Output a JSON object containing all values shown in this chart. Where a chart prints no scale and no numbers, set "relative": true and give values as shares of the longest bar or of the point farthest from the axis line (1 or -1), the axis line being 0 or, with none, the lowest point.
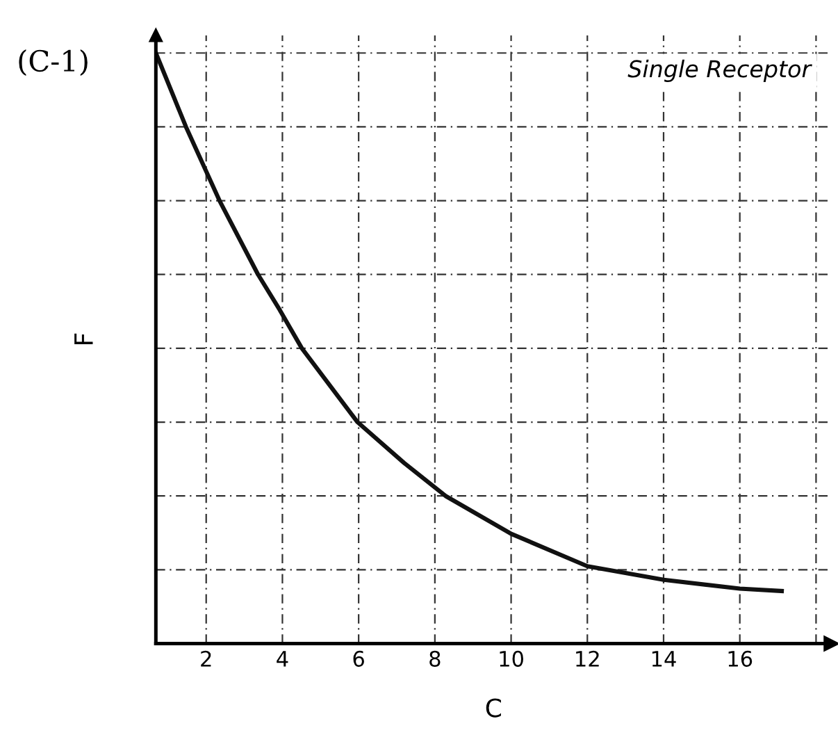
{
  "chart_data": {
    "type": "line",
    "relative": true,
    "xlabel": "C",
    "ylabel": "F",
    "annotations": [
      "(C-1)",
      "Single Receptor"
    ],
    "x": [
      0.68,
      1.47,
      2.35,
      3.36,
      3.93,
      4.51,
      5.97,
      7.19,
      8.28,
      10,
      12,
      14,
      16,
      17.1
    ],
    "series": [
      {
        "color": "#111111",
        "values": [
          1.0,
          0.875,
          0.75,
          0.625,
          0.565,
          0.5,
          0.375,
          0.306,
          0.25,
          0.186,
          0.131,
          0.108,
          0.093,
          0.089
        ]
      }
    ],
    "xlim": [
      0.68,
      18.4
    ],
    "xticks": [
      2,
      4,
      6,
      8,
      10,
      12,
      14,
      16,
      {
        "value": 18,
        "label": null
      }
    ],
    "grid": true,
    "marker": "none",
    "line_style": "solid",
    "legend": false
  }
}
